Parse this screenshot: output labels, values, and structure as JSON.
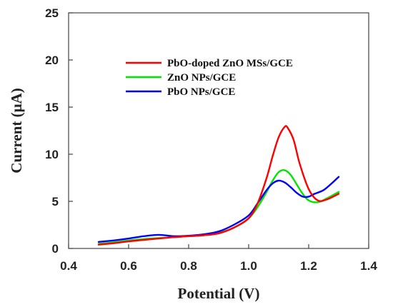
{
  "chart_data": {
    "type": "line",
    "title": "",
    "xlabel": "Potential (V)",
    "ylabel": "Current (μA)",
    "xlim": [
      0.4,
      1.4
    ],
    "ylim": [
      0,
      25
    ],
    "xticks": [
      "0.4",
      "0.6",
      "0.8",
      "1.0",
      "1.2",
      "1.4"
    ],
    "yticks": [
      "0",
      "5",
      "10",
      "15",
      "20",
      "25"
    ],
    "grid": false,
    "legend_position": "top-center",
    "series": [
      {
        "name": "PbO-doped ZnO MSs/GCE",
        "color": "#ff0000",
        "x": [
          0.5,
          0.55,
          0.6,
          0.65,
          0.7,
          0.75,
          0.8,
          0.85,
          0.9,
          0.95,
          1.0,
          1.03,
          1.06,
          1.08,
          1.1,
          1.12,
          1.13,
          1.15,
          1.17,
          1.2,
          1.23,
          1.26,
          1.3
        ],
        "y": [
          0.4,
          0.55,
          0.75,
          0.9,
          1.05,
          1.2,
          1.3,
          1.4,
          1.6,
          2.2,
          3.2,
          4.8,
          7.5,
          9.8,
          11.8,
          12.9,
          12.8,
          11.5,
          9.0,
          6.3,
          5.1,
          5.2,
          5.8
        ]
      },
      {
        "name": "ZnO NPs/GCE",
        "color": "#00e600",
        "x": [
          0.5,
          0.55,
          0.6,
          0.65,
          0.7,
          0.75,
          0.8,
          0.85,
          0.9,
          0.95,
          1.0,
          1.03,
          1.06,
          1.08,
          1.1,
          1.12,
          1.14,
          1.16,
          1.18,
          1.2,
          1.23,
          1.26,
          1.3
        ],
        "y": [
          0.5,
          0.65,
          0.85,
          1.0,
          1.1,
          1.2,
          1.3,
          1.4,
          1.65,
          2.2,
          3.2,
          4.4,
          6.0,
          7.2,
          8.1,
          8.3,
          7.8,
          6.8,
          5.8,
          5.1,
          4.9,
          5.3,
          6.0
        ]
      },
      {
        "name": "PbO NPs/GCE",
        "color": "#0000ff",
        "x": [
          0.5,
          0.55,
          0.6,
          0.65,
          0.7,
          0.75,
          0.8,
          0.85,
          0.9,
          0.95,
          1.0,
          1.03,
          1.06,
          1.08,
          1.1,
          1.12,
          1.14,
          1.16,
          1.18,
          1.2,
          1.22,
          1.25,
          1.28,
          1.3
        ],
        "y": [
          0.7,
          0.85,
          1.05,
          1.3,
          1.45,
          1.3,
          1.35,
          1.5,
          1.8,
          2.5,
          3.5,
          4.8,
          6.2,
          6.9,
          7.2,
          7.0,
          6.5,
          5.9,
          5.5,
          5.5,
          5.8,
          6.2,
          7.0,
          7.6
        ]
      }
    ]
  }
}
